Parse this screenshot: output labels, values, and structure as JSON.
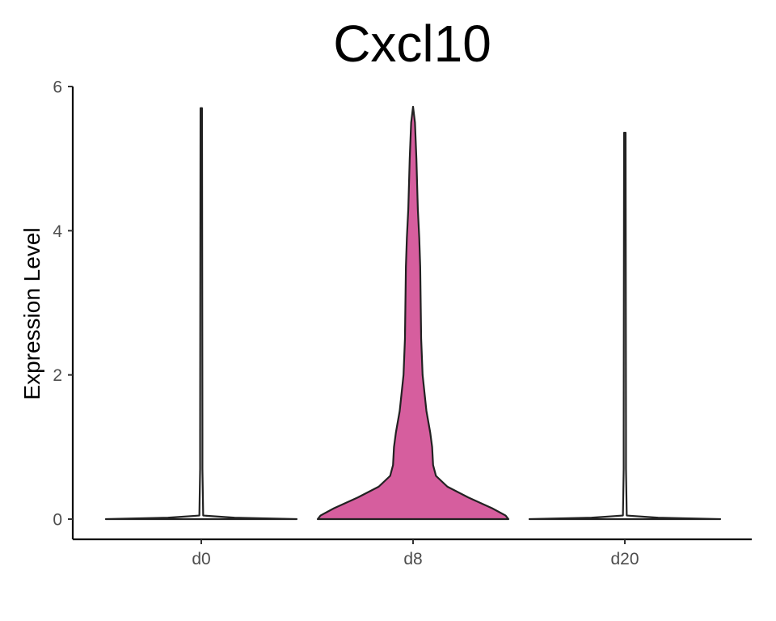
{
  "chart_data": {
    "type": "violin",
    "title": "Cxcl10",
    "xlabel": "",
    "ylabel": "Expression Level",
    "categories": [
      "d0",
      "d8",
      "d20"
    ],
    "ylim": [
      -0.3,
      6
    ],
    "yticks": [
      0,
      2,
      4,
      6
    ],
    "grid": false,
    "legend": "none",
    "series": [
      {
        "category": "d0",
        "fill": "#ffffff",
        "outline": "#222222",
        "max_value": 5.7,
        "density_profile": [
          [
            0,
            1.0
          ],
          [
            0.02,
            0.35
          ],
          [
            0.05,
            0.02
          ],
          [
            0.7,
            0.012
          ],
          [
            1.2,
            0.012
          ],
          [
            5.7,
            0.008
          ]
        ]
      },
      {
        "category": "d8",
        "fill": "#D65E9E",
        "outline": "#222222",
        "max_value": 5.72,
        "density_profile": [
          [
            0,
            1.0
          ],
          [
            0.05,
            0.97
          ],
          [
            0.15,
            0.83
          ],
          [
            0.3,
            0.58
          ],
          [
            0.45,
            0.36
          ],
          [
            0.6,
            0.24
          ],
          [
            0.75,
            0.21
          ],
          [
            1.0,
            0.2
          ],
          [
            1.2,
            0.18
          ],
          [
            1.5,
            0.14
          ],
          [
            2.0,
            0.1
          ],
          [
            2.5,
            0.085
          ],
          [
            3.0,
            0.08
          ],
          [
            3.5,
            0.075
          ],
          [
            3.9,
            0.065
          ],
          [
            4.3,
            0.05
          ],
          [
            5.0,
            0.035
          ],
          [
            5.5,
            0.02
          ],
          [
            5.72,
            0.0
          ]
        ]
      },
      {
        "category": "d20",
        "fill": "#ffffff",
        "outline": "#222222",
        "max_value": 5.36,
        "density_profile": [
          [
            0,
            1.0
          ],
          [
            0.02,
            0.35
          ],
          [
            0.05,
            0.02
          ],
          [
            0.7,
            0.012
          ],
          [
            1.2,
            0.012
          ],
          [
            5.36,
            0.008
          ]
        ]
      }
    ]
  }
}
